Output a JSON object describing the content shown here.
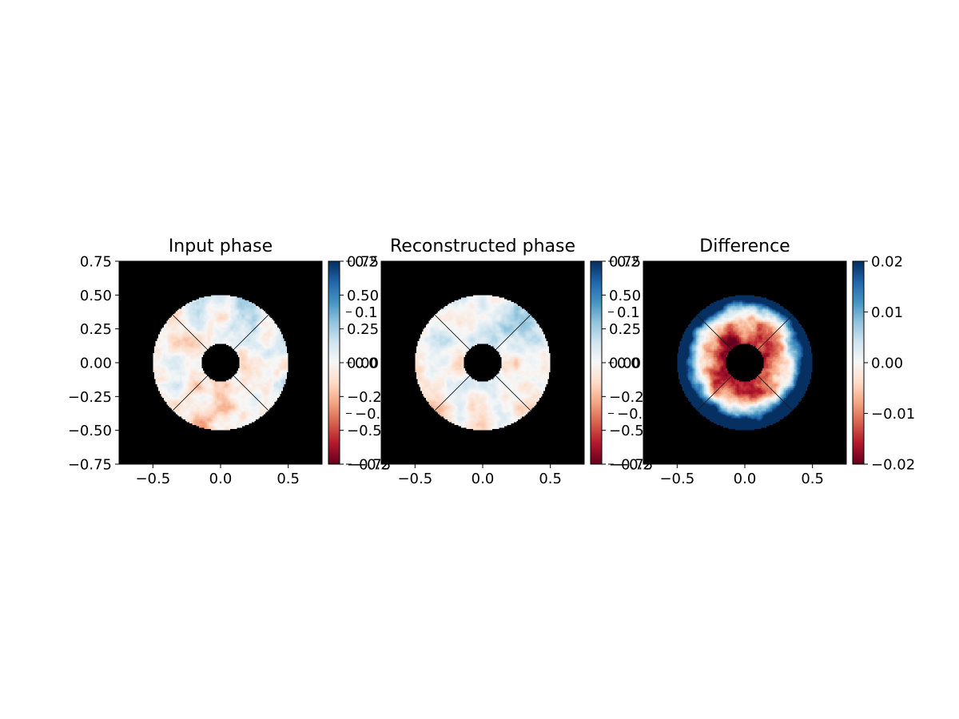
{
  "chart_data": [
    {
      "type": "heatmap",
      "title": "Input phase",
      "xlim": [
        -0.75,
        0.75
      ],
      "ylim": [
        -0.75,
        0.75
      ],
      "xticks": [
        "−0.5",
        "0.0",
        "0.5"
      ],
      "xtick_values": [
        -0.5,
        0.0,
        0.5
      ],
      "yticks": [
        "0.75",
        "0.50",
        "0.25",
        "0.00",
        "−0.25",
        "−0.50",
        "−0.75"
      ],
      "ytick_values": [
        0.75,
        0.5,
        0.25,
        0.0,
        -0.25,
        -0.5,
        -0.75
      ],
      "mask_outer_radius": 0.5,
      "mask_inner_radius": 0.14,
      "spider_angles_deg": [
        45,
        135,
        225,
        315
      ],
      "colormap": "RdBu",
      "pattern": "turbulence",
      "amplitude": 0.35,
      "colorbar": {
        "range": [
          -0.75,
          0.75
        ],
        "ticks_primary": [
          "0.75",
          "0.50",
          "0.25",
          "0.00",
          "−0.25",
          "−0.50",
          "−0.75"
        ],
        "ticks_primary_values": [
          0.75,
          0.5,
          0.25,
          0.0,
          -0.25,
          -0.5,
          -0.75
        ],
        "ticks_overlap": [
          "0.2",
          "0.1",
          "0.0",
          "−0.1",
          "−0.2"
        ],
        "ticks_overlap_values": [
          0.2,
          0.1,
          0.0,
          -0.1,
          -0.2
        ]
      }
    },
    {
      "type": "heatmap",
      "title": "Reconstructed phase",
      "xlim": [
        -0.75,
        0.75
      ],
      "ylim": [
        -0.75,
        0.75
      ],
      "xticks": [
        "−0.5",
        "0.0",
        "0.5"
      ],
      "xtick_values": [
        -0.5,
        0.0,
        0.5
      ],
      "yticks": [],
      "ytick_values": [],
      "mask_outer_radius": 0.5,
      "mask_inner_radius": 0.14,
      "spider_angles_deg": [
        45,
        135,
        225,
        315
      ],
      "colormap": "RdBu",
      "pattern": "turbulence",
      "amplitude": 0.32,
      "colorbar": {
        "range": [
          -0.75,
          0.75
        ],
        "ticks_primary": [
          "0.75",
          "0.50",
          "0.25",
          "0.00",
          "−0.25",
          "−0.50",
          "−0.75"
        ],
        "ticks_primary_values": [
          0.75,
          0.5,
          0.25,
          0.0,
          -0.25,
          -0.5,
          -0.75
        ],
        "ticks_overlap": [
          "0.2",
          "0.1",
          "0.0",
          "−0.1",
          "−0.2"
        ],
        "ticks_overlap_values": [
          0.2,
          0.1,
          0.0,
          -0.1,
          -0.2
        ]
      }
    },
    {
      "type": "heatmap",
      "title": "Difference",
      "xlim": [
        -0.75,
        0.75
      ],
      "ylim": [
        -0.75,
        0.75
      ],
      "xticks": [
        "−0.5",
        "0.0",
        "0.5"
      ],
      "xtick_values": [
        -0.5,
        0.0,
        0.5
      ],
      "yticks": [],
      "ytick_values": [],
      "mask_outer_radius": 0.5,
      "mask_inner_radius": 0.14,
      "spider_angles_deg": [
        45,
        135,
        225,
        315
      ],
      "colormap": "RdBu",
      "pattern": "radial",
      "amplitude": 1.0,
      "colorbar": {
        "range": [
          -0.02,
          0.02
        ],
        "ticks_primary": [
          "0.02",
          "0.01",
          "0.00",
          "−0.01",
          "−0.02"
        ],
        "ticks_primary_values": [
          0.02,
          0.01,
          0.0,
          -0.01,
          -0.02
        ],
        "ticks_overlap": [],
        "ticks_overlap_values": []
      }
    }
  ]
}
